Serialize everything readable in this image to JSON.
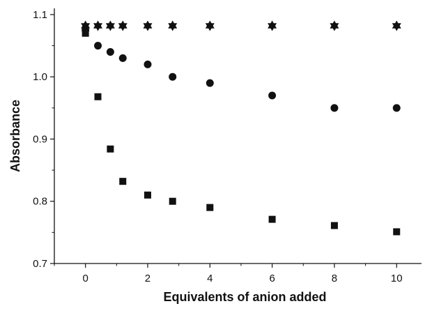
{
  "chart_data": {
    "type": "scatter",
    "title": "",
    "xlabel": "Equivalents of anion added",
    "ylabel": "Absorbance",
    "xlim": [
      -1,
      10.8
    ],
    "ylim": [
      0.7,
      1.11
    ],
    "xticks": [
      0,
      2,
      4,
      6,
      8,
      10
    ],
    "yticks": [
      0.7,
      0.8,
      0.9,
      1.0,
      1.1
    ],
    "xtick_labels": [
      "0",
      "2",
      "4",
      "6",
      "8",
      "10"
    ],
    "ytick_labels": [
      "0.7",
      "0.8",
      "0.9",
      "1.0",
      "1.1"
    ],
    "grid": false,
    "legend": "none",
    "series": [
      {
        "marker": "star",
        "color": "#111111",
        "x": [
          0,
          0.4,
          0.8,
          1.2,
          2,
          2.8,
          4,
          6,
          8,
          10
        ],
        "y": [
          1.082,
          1.082,
          1.082,
          1.082,
          1.082,
          1.082,
          1.082,
          1.082,
          1.082,
          1.082
        ]
      },
      {
        "marker": "circle",
        "color": "#111111",
        "x": [
          0,
          0.4,
          0.8,
          1.2,
          2,
          2.8,
          4,
          6,
          8,
          10
        ],
        "y": [
          1.075,
          1.05,
          1.04,
          1.03,
          1.02,
          1.0,
          0.99,
          0.97,
          0.95,
          0.95
        ]
      },
      {
        "marker": "square",
        "color": "#111111",
        "x": [
          0,
          0.4,
          0.8,
          1.2,
          2,
          2.8,
          4,
          6,
          8,
          10
        ],
        "y": [
          1.07,
          0.968,
          0.884,
          0.832,
          0.81,
          0.8,
          0.79,
          0.771,
          0.761,
          0.751
        ]
      }
    ]
  }
}
